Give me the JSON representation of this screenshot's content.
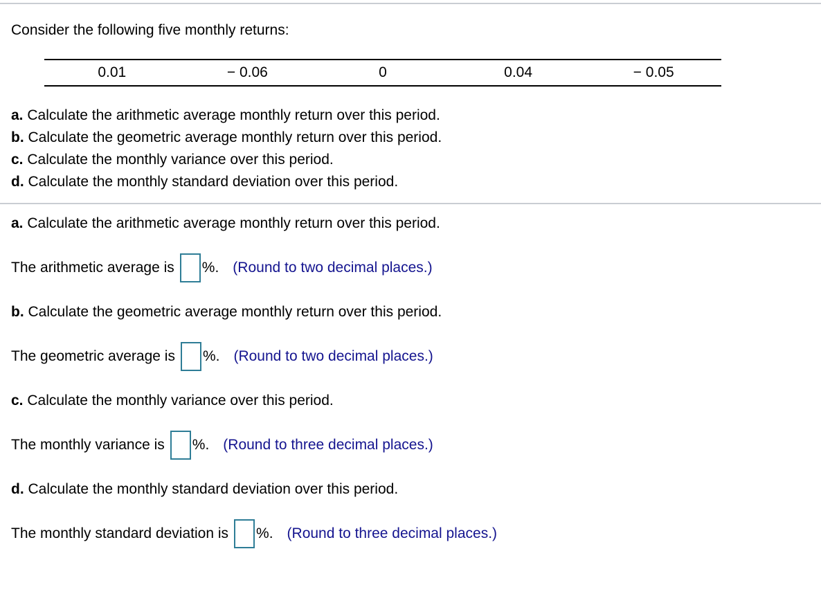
{
  "colors": {
    "note_navy": "#14148f",
    "answer_box_border": "#2e7d96",
    "divider_gray": "#c9cdd3",
    "table_rule_black": "#000000"
  },
  "intro": "Consider the following five monthly returns:",
  "returns_table": {
    "type": "table",
    "values": [
      "0.01",
      "− 0.06",
      "0",
      "0.04",
      "− 0.05"
    ]
  },
  "question_list": [
    {
      "letter": "a.",
      "text": "Calculate the arithmetic average monthly return over this period."
    },
    {
      "letter": "b.",
      "text": "Calculate the geometric average monthly return over this period."
    },
    {
      "letter": "c.",
      "text": "Calculate the monthly variance over this period."
    },
    {
      "letter": "d.",
      "text": "Calculate the monthly standard deviation over this period."
    }
  ],
  "answer_sections": [
    {
      "letter": "a.",
      "title": "Calculate the arithmetic average monthly return over this period.",
      "prompt": "The arithmetic average is",
      "input_value": "",
      "unit": "%.",
      "note": "(Round to two decimal places.)"
    },
    {
      "letter": "b.",
      "title": "Calculate the geometric average monthly return over this period.",
      "prompt": "The geometric average is",
      "input_value": "",
      "unit": "%.",
      "note": "(Round to two decimal places.)"
    },
    {
      "letter": "c.",
      "title": "Calculate the monthly variance over this period.",
      "prompt": "The monthly variance is",
      "input_value": "",
      "unit": "%.",
      "note": "(Round to three decimal places.)"
    },
    {
      "letter": "d.",
      "title": "Calculate the monthly standard deviation over this period.",
      "prompt": "The monthly standard deviation is",
      "input_value": "",
      "unit": "%.",
      "note": "(Round to three decimal places.)"
    }
  ]
}
